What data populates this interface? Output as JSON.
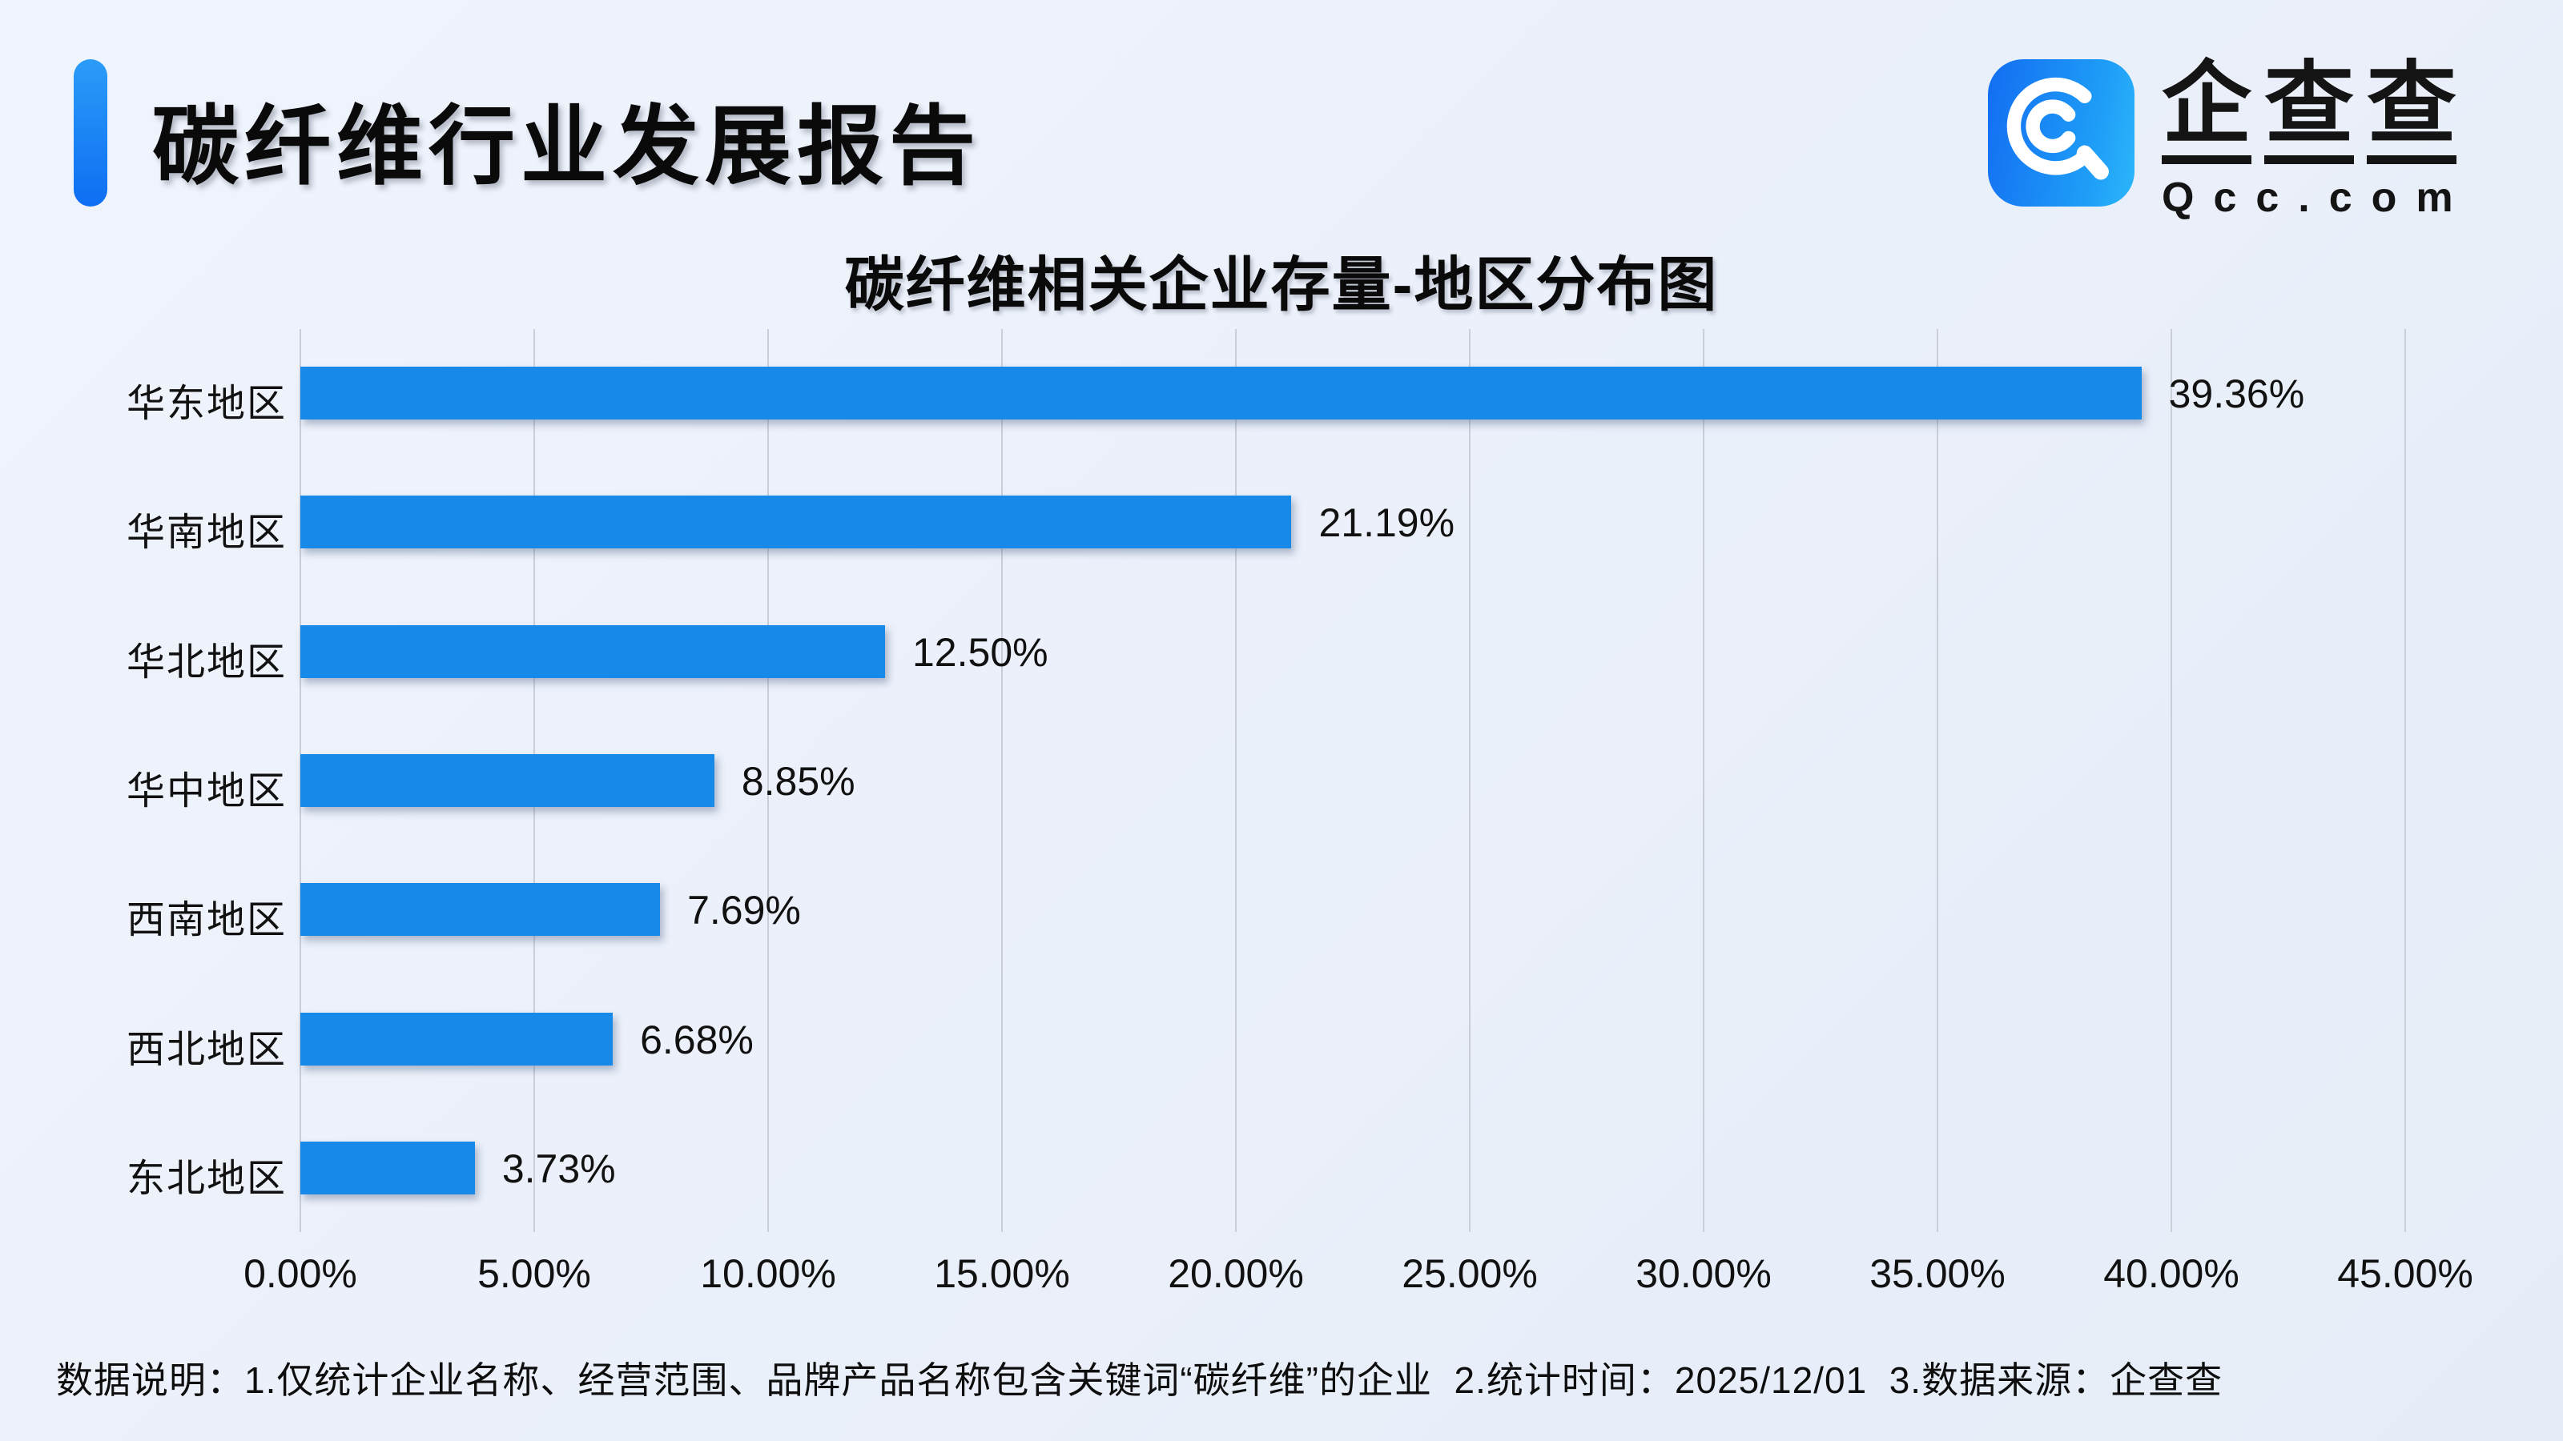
{
  "header": {
    "title": "碳纤维行业发展报告"
  },
  "logo": {
    "brand_cn": "企查查",
    "brand_domain": "Qcc.com",
    "icon_color_start": "#136df2",
    "icon_color_end": "#2cb6fa"
  },
  "chart_data": {
    "type": "bar",
    "orientation": "horizontal",
    "title": "碳纤维相关企业存量-地区分布图",
    "categories": [
      "华东地区",
      "华南地区",
      "华北地区",
      "华中地区",
      "西南地区",
      "西北地区",
      "东北地区"
    ],
    "values": [
      39.36,
      21.19,
      12.5,
      8.85,
      7.69,
      6.68,
      3.73
    ],
    "value_labels": [
      "39.36%",
      "21.19%",
      "12.50%",
      "8.85%",
      "7.69%",
      "6.68%",
      "3.73%"
    ],
    "x_ticks": [
      0,
      5,
      10,
      15,
      20,
      25,
      30,
      35,
      40,
      45
    ],
    "x_tick_labels": [
      "0.00%",
      "5.00%",
      "10.00%",
      "15.00%",
      "20.00%",
      "25.00%",
      "30.00%",
      "35.00%",
      "40.00%",
      "45.00%"
    ],
    "xlim": [
      0,
      45
    ],
    "grid": true,
    "legend": false,
    "bar_color": "#1689e9"
  },
  "footer": {
    "note": "数据说明：1.仅统计企业名称、经营范围、品牌产品名称包含关键词“碳纤维”的企业  2.统计时间：2025/12/01  3.数据来源：企查查"
  }
}
